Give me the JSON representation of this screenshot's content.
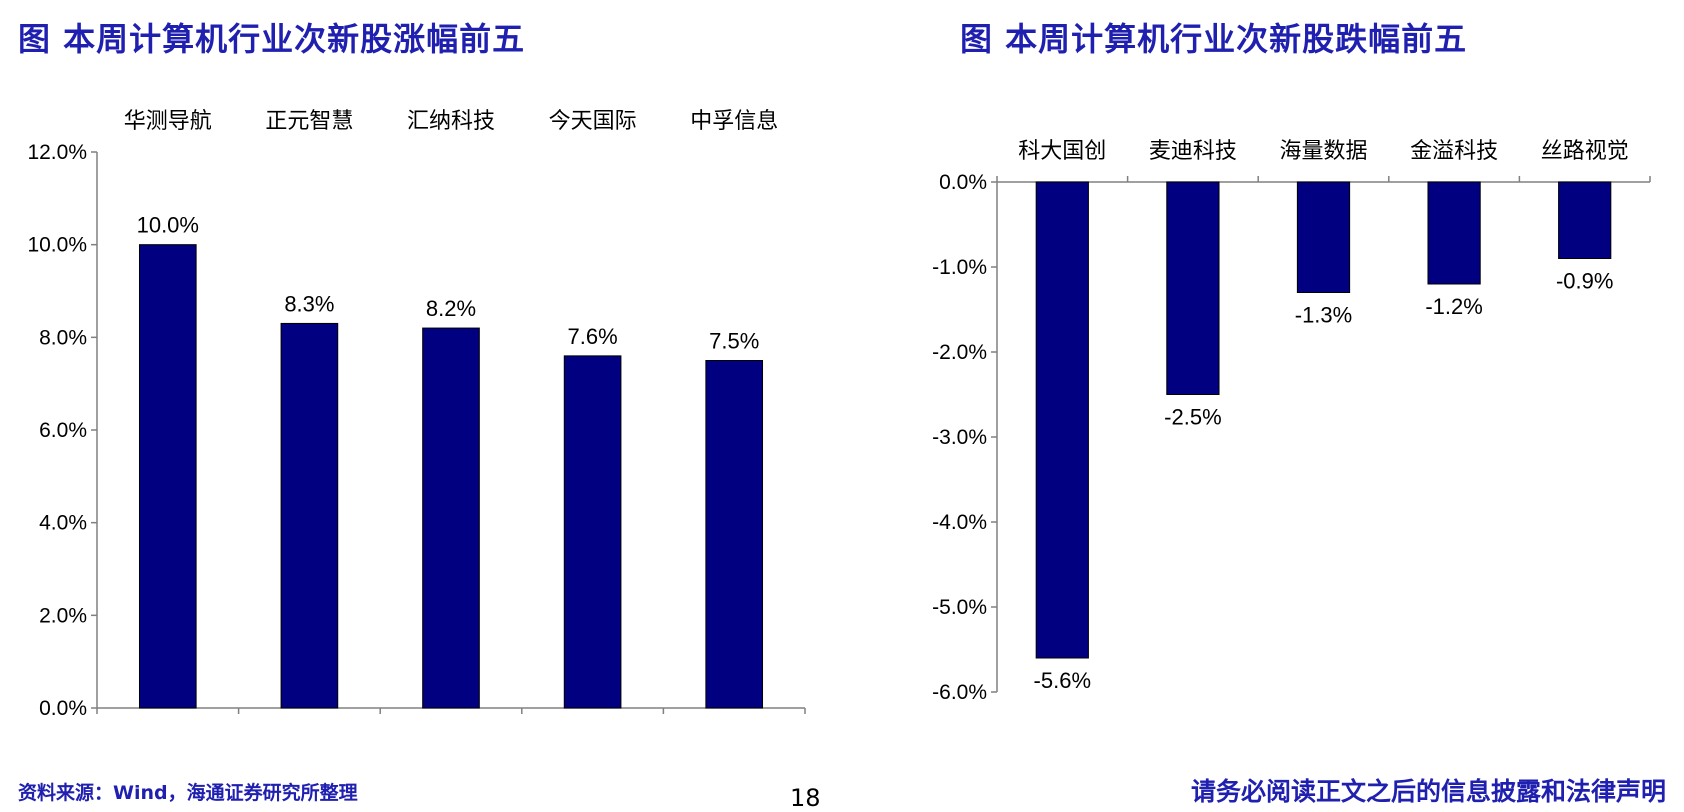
{
  "titles": {
    "left": "图 本周计算机行业次新股涨幅前五",
    "right": "图 本周计算机行业次新股跌幅前五"
  },
  "footer": {
    "source": "资料来源：Wind，海通证券研究所整理",
    "page": "18",
    "disclaimer": "请务必阅读正文之后的信息披露和法律声明"
  },
  "colors": {
    "bar": "#000080",
    "title": "#1f1fb0",
    "axis": "#808080"
  },
  "chart_data": [
    {
      "type": "bar",
      "title": "图 本周计算机行业次新股涨幅前五",
      "categories": [
        "华测导航",
        "正元智慧",
        "汇纳科技",
        "今天国际",
        "中孚信息"
      ],
      "values": [
        10.0,
        8.3,
        8.2,
        7.6,
        7.5
      ],
      "data_labels": [
        "10.0%",
        "8.3%",
        "8.2%",
        "7.6%",
        "7.5%"
      ],
      "ylim": [
        0,
        12
      ],
      "yticks": [
        0,
        2,
        4,
        6,
        8,
        10,
        12
      ],
      "ytick_labels": [
        "0.0%",
        "2.0%",
        "4.0%",
        "6.0%",
        "8.0%",
        "10.0%",
        "12.0%"
      ],
      "category_position": "top",
      "grid": false
    },
    {
      "type": "bar",
      "title": "图 本周计算机行业次新股跌幅前五",
      "categories": [
        "科大国创",
        "麦迪科技",
        "海量数据",
        "金溢科技",
        "丝路视觉"
      ],
      "values": [
        -5.6,
        -2.5,
        -1.3,
        -1.2,
        -0.9
      ],
      "data_labels": [
        "-5.6%",
        "-2.5%",
        "-1.3%",
        "-1.2%",
        "-0.9%"
      ],
      "ylim": [
        -6,
        0
      ],
      "yticks": [
        0,
        -1,
        -2,
        -3,
        -4,
        -5,
        -6
      ],
      "ytick_labels": [
        "0.0%",
        "-1.0%",
        "-2.0%",
        "-3.0%",
        "-4.0%",
        "-5.0%",
        "-6.0%"
      ],
      "category_position": "top",
      "grid": false
    }
  ]
}
